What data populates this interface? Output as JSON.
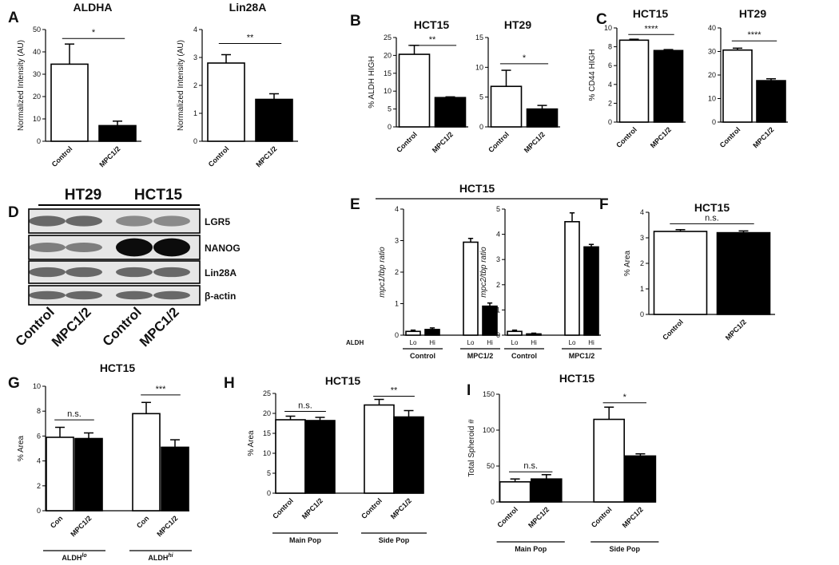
{
  "panels": [
    {
      "id": "A1",
      "letter": "A",
      "title": "ALDHA",
      "ylabel": "Normalized Intensity (AU)",
      "yticks": [
        "0",
        "10",
        "20",
        "30",
        "40",
        "50"
      ],
      "ylim": [
        0,
        50
      ],
      "categories": [
        "Control",
        "MPC1/2"
      ],
      "values": [
        34.5,
        7.0
      ],
      "errors": [
        9.0,
        2.0
      ],
      "sig": [
        {
          "text": "*",
          "from": 0,
          "to": 1,
          "y": 46
        }
      ]
    },
    {
      "id": "A2",
      "letter": "",
      "title": "Lin28A",
      "ylabel": "Normalized Intensity (AU)",
      "yticks": [
        "0",
        "1",
        "2",
        "3",
        "4"
      ],
      "ylim": [
        0,
        4
      ],
      "categories": [
        "Control",
        "MPC1/2"
      ],
      "values": [
        2.8,
        1.5
      ],
      "errors": [
        0.3,
        0.2
      ],
      "sig": [
        {
          "text": "**",
          "from": 0,
          "to": 1,
          "y": 3.5
        }
      ]
    },
    {
      "id": "B1",
      "letter": "B",
      "title": "HCT15",
      "ylabel": "% ALDH HIGH",
      "yticks": [
        "0",
        "5",
        "10",
        "15",
        "20",
        "25"
      ],
      "ylim": [
        0,
        25
      ],
      "categories": [
        "Control",
        "MPC1/2"
      ],
      "values": [
        20.3,
        8.2
      ],
      "errors": [
        2.5,
        0.2
      ],
      "sig": [
        {
          "text": "**",
          "from": 0,
          "to": 1,
          "y": 22.8
        }
      ]
    },
    {
      "id": "B2",
      "letter": "",
      "title": "HT29",
      "ylabel": "",
      "yticks": [
        "0",
        "5",
        "10",
        "15"
      ],
      "ylim": [
        0,
        15
      ],
      "categories": [
        "Control",
        "MPC1/2"
      ],
      "values": [
        6.8,
        3.0
      ],
      "errors": [
        2.7,
        0.6
      ],
      "sig": [
        {
          "text": "*",
          "from": 0,
          "to": 1,
          "y": 10.6
        }
      ]
    },
    {
      "id": "C1",
      "letter": "C",
      "title": "HCT15",
      "ylabel": "% CD44 HIGH",
      "yticks": [
        "0",
        "2",
        "4",
        "6",
        "8",
        "10"
      ],
      "ylim": [
        0,
        10
      ],
      "categories": [
        "Control",
        "MPC1/2"
      ],
      "values": [
        8.7,
        7.6
      ],
      "errors": [
        0.1,
        0.1
      ],
      "sig": [
        {
          "text": "****",
          "from": 0,
          "to": 1,
          "y": 9.3
        }
      ]
    },
    {
      "id": "C2",
      "letter": "",
      "title": "HT29",
      "ylabel": "",
      "yticks": [
        "0",
        "10",
        "20",
        "30",
        "40"
      ],
      "ylim": [
        0,
        40
      ],
      "categories": [
        "Control",
        "MPC1/2"
      ],
      "values": [
        30.6,
        17.6
      ],
      "errors": [
        0.8,
        0.8
      ],
      "sig": [
        {
          "text": "****",
          "from": 0,
          "to": 1,
          "y": 34.5
        }
      ]
    },
    {
      "id": "E1",
      "letter": "E",
      "title": "",
      "ylabel": "mpc1/tbp ratio",
      "yticks": [
        "0",
        "1",
        "2",
        "3",
        "4"
      ],
      "ylim": [
        0,
        4
      ],
      "categories": [
        "Lo",
        "Hi",
        "Lo",
        "Hi"
      ],
      "values": [
        0.12,
        0.18,
        2.95,
        0.92
      ],
      "errors": [
        0.04,
        0.05,
        0.12,
        0.1
      ],
      "groups": [
        {
          "label": "Control",
          "from": 0,
          "to": 1
        },
        {
          "label": "MPC1/2",
          "from": 2,
          "to": 3
        }
      ],
      "sublabel": "ALDH"
    },
    {
      "id": "E2",
      "letter": "",
      "title": "",
      "ylabel": "mpc2/tbp ratio",
      "yticks": [
        "0",
        "1",
        "2",
        "3",
        "4",
        "5"
      ],
      "ylim": [
        0,
        5
      ],
      "categories": [
        "Lo",
        "Hi",
        "Lo",
        "Hi"
      ],
      "values": [
        0.15,
        0.05,
        4.5,
        3.5
      ],
      "errors": [
        0.05,
        0.03,
        0.35,
        0.1
      ],
      "groups": [
        {
          "label": "Control",
          "from": 0,
          "to": 1
        },
        {
          "label": "MPC1/2",
          "from": 2,
          "to": 3
        }
      ]
    },
    {
      "id": "F",
      "letter": "F",
      "title": "HCT15",
      "ylabel": "% Area",
      "yticks": [
        "0",
        "1",
        "2",
        "3",
        "4"
      ],
      "ylim": [
        0,
        4
      ],
      "categories": [
        "Control",
        "MPC1/2"
      ],
      "values": [
        3.25,
        3.2
      ],
      "errors": [
        0.07,
        0.07
      ],
      "sig": [
        {
          "text": "n.s.",
          "from": 0,
          "to": 1,
          "y": 3.55
        }
      ]
    },
    {
      "id": "G",
      "letter": "G",
      "title": "HCT15",
      "ylabel": "% Area",
      "yticks": [
        "0",
        "2",
        "4",
        "6",
        "8",
        "10"
      ],
      "ylim": [
        0,
        10
      ],
      "categories": [
        "Con",
        "MPC1/2",
        "Con",
        "MPC1/2"
      ],
      "values": [
        5.9,
        5.8,
        7.8,
        5.1
      ],
      "errors": [
        0.8,
        0.45,
        0.9,
        0.6
      ],
      "groups": [
        {
          "label": "ALDH",
          "sup": "lo",
          "from": 0,
          "to": 1
        },
        {
          "label": "ALDH",
          "sup": "hi",
          "from": 2,
          "to": 3
        }
      ],
      "sig": [
        {
          "text": "n.s.",
          "from": 0,
          "to": 1,
          "y": 7.3
        },
        {
          "text": "***",
          "from": 2,
          "to": 3,
          "y": 9.3
        }
      ]
    },
    {
      "id": "H",
      "letter": "H",
      "title": "HCT15",
      "ylabel": "% Area",
      "yticks": [
        "0",
        "5",
        "10",
        "15",
        "20",
        "25"
      ],
      "ylim": [
        0,
        25
      ],
      "categories": [
        "Control",
        "MPC1/2",
        "Control",
        "MPC1/2"
      ],
      "values": [
        18.4,
        18.2,
        22.1,
        19.1
      ],
      "errors": [
        0.9,
        0.8,
        1.4,
        1.6
      ],
      "groups": [
        {
          "label": "Main Pop",
          "from": 0,
          "to": 1
        },
        {
          "label": "Side Pop",
          "from": 2,
          "to": 3
        }
      ],
      "sig": [
        {
          "text": "n.s.",
          "from": 0,
          "to": 1,
          "y": 20.5
        },
        {
          "text": "**",
          "from": 2,
          "to": 3,
          "y": 24.3
        }
      ]
    },
    {
      "id": "I",
      "letter": "I",
      "title": "HCT15",
      "ylabel": "Total Spheroid #",
      "yticks": [
        "0",
        "50",
        "100",
        "150"
      ],
      "ylim": [
        0,
        150
      ],
      "categories": [
        "Control",
        "MPC1/2",
        "Control",
        "MPC1/2"
      ],
      "values": [
        28,
        32,
        115,
        64
      ],
      "errors": [
        4,
        6,
        17,
        3
      ],
      "groups": [
        {
          "label": "Main Pop",
          "from": 0,
          "to": 1
        },
        {
          "label": "Side Pop",
          "from": 2,
          "to": 3
        }
      ],
      "sig": [
        {
          "text": "n.s.",
          "from": 0,
          "to": 1,
          "y": 42
        },
        {
          "text": "*",
          "from": 2,
          "to": 3,
          "y": 138
        }
      ]
    }
  ],
  "panel_e_header": "HCT15",
  "western": {
    "letter": "D",
    "cell_lines": [
      "HT29",
      "HCT15"
    ],
    "bands": [
      "LGR5",
      "NANOG",
      "Lin28A",
      "β-actin"
    ],
    "lanes": [
      "Control",
      "MPC1/2",
      "Control",
      "MPC1/2"
    ]
  },
  "colors": {
    "control": "#ffffff",
    "treated": "#000000",
    "stroke": "#000000"
  }
}
